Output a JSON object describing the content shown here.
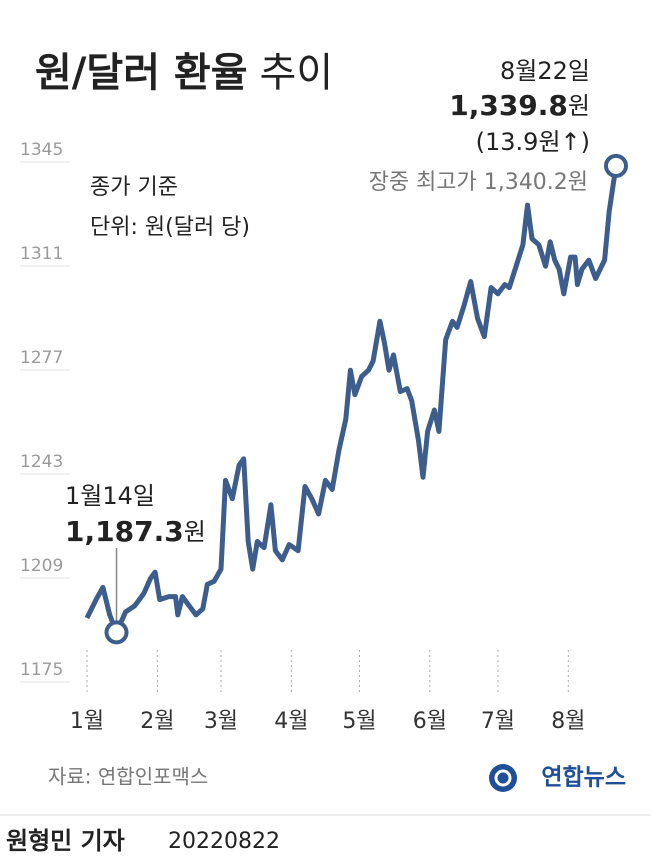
{
  "chart_data": {
    "type": "line",
    "title": "원/달러 환율",
    "title_suffix": "추이",
    "notes": [
      "종가 기준",
      "단위: 원(달러 당)"
    ],
    "x": [
      1,
      5,
      8,
      11,
      14,
      18,
      22,
      26,
      29,
      31,
      33,
      37,
      40,
      41,
      43,
      46,
      49,
      52,
      54,
      57,
      60,
      62,
      65,
      68,
      70,
      72,
      74,
      76,
      79,
      82,
      84,
      87,
      90,
      94,
      97,
      100,
      103,
      106,
      109,
      112,
      115,
      117,
      119,
      122,
      125,
      127,
      130,
      132,
      134,
      136,
      139,
      142,
      144,
      147,
      149,
      151,
      154,
      156,
      159,
      162,
      164,
      167,
      170,
      173,
      176,
      179,
      182,
      185,
      187,
      190,
      193,
      195,
      197,
      200,
      203,
      205,
      207,
      209,
      211,
      214,
      216,
      217,
      219,
      222,
      225,
      229,
      231,
      234
    ],
    "xlim": [
      1,
      234
    ],
    "xticks": [
      {
        "value": 1,
        "label": "1월"
      },
      {
        "value": 32,
        "label": "2월"
      },
      {
        "value": 60,
        "label": "3월"
      },
      {
        "value": 91,
        "label": "4월"
      },
      {
        "value": 121,
        "label": "5월"
      },
      {
        "value": 152,
        "label": "6월"
      },
      {
        "value": 182,
        "label": "7월"
      },
      {
        "value": 213,
        "label": "8월"
      }
    ],
    "series": [
      {
        "color": "#3d5d8c",
        "values": [
          1192,
          1198,
          1202,
          1193,
          1187.3,
          1194,
          1196,
          1200,
          1205,
          1207,
          1198,
          1199,
          1199,
          1193,
          1199,
          1196,
          1193,
          1195,
          1203,
          1204,
          1208,
          1237,
          1231,
          1242,
          1244,
          1217,
          1208,
          1217,
          1215,
          1229,
          1214,
          1211,
          1216,
          1214,
          1235,
          1231,
          1226,
          1237,
          1234,
          1247,
          1257,
          1273,
          1265,
          1271,
          1273,
          1276,
          1289,
          1282,
          1273,
          1278,
          1266,
          1267,
          1263,
          1250,
          1238,
          1253,
          1260,
          1253,
          1283,
          1289,
          1287,
          1294,
          1302,
          1290,
          1284,
          1300,
          1298,
          1301,
          1300,
          1307,
          1314,
          1327,
          1316,
          1314,
          1307,
          1315,
          1309,
          1306,
          1298,
          1310,
          1310,
          1301,
          1306,
          1309,
          1303,
          1309,
          1325,
          1339.8
        ]
      }
    ],
    "ylim": [
      1175,
      1345
    ],
    "yticks": [
      1175,
      1209,
      1243,
      1277,
      1311,
      1345
    ],
    "annotations": [
      {
        "date": "1월14일",
        "value": "1,187.3",
        "unit": "원"
      },
      {
        "date": "8월22일",
        "value": "1,339.8",
        "unit": "원",
        "change": "(13.9원↑)",
        "intraday": "장중 최고가 1,340.2원"
      }
    ],
    "source": "자료: 연합인포맥스",
    "logo": "연합뉴스",
    "byline": "원형민 기자",
    "date": "20220822"
  }
}
